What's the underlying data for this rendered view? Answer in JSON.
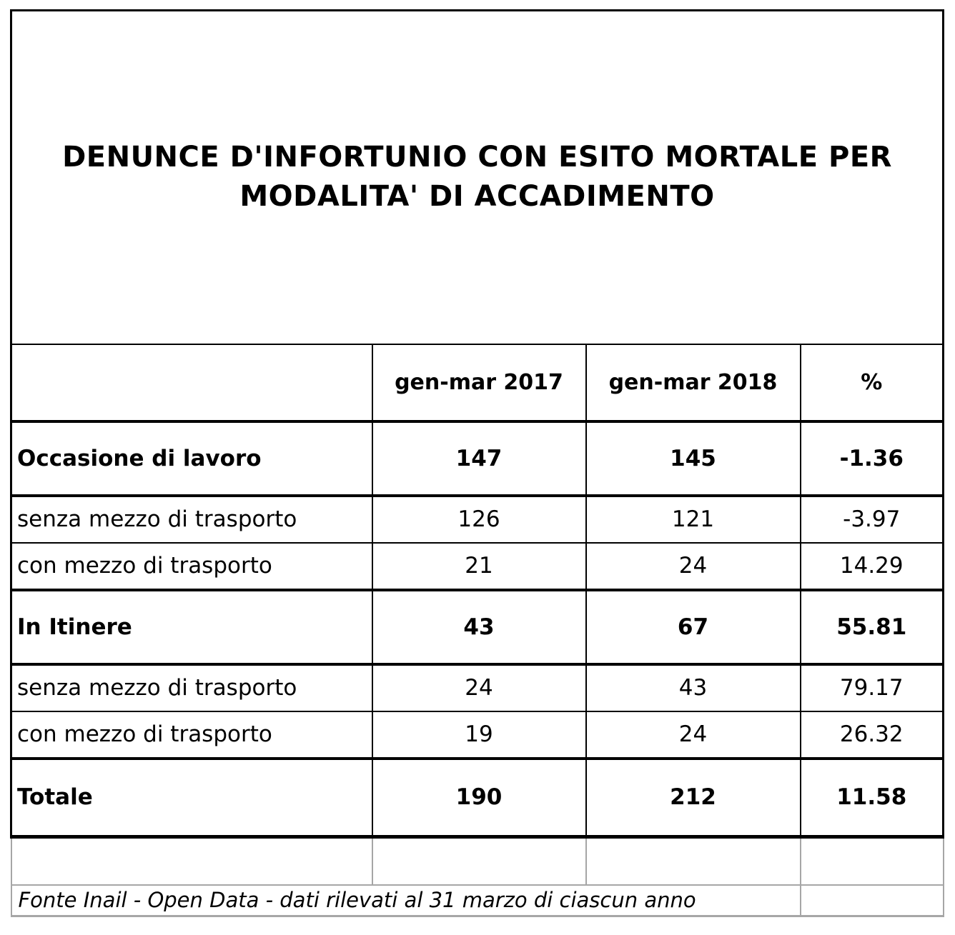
{
  "title": {
    "line1": "DENUNCE D'INFORTUNIO CON ESITO MORTALE PER",
    "line2": "MODALITA' DI ACCADIMENTO",
    "full": "DENUNCE D'INFORTUNIO CON ESITO MORTALE PER MODALITA' DI ACCADIMENTO"
  },
  "table": {
    "columns": [
      "",
      "gen-mar 2017",
      "gen-mar 2018",
      "%"
    ],
    "rows": [
      {
        "label": "Occasione di lavoro",
        "v2017": "147",
        "v2018": "145",
        "pct": "-1.36",
        "emphasis": "bold"
      },
      {
        "label": "senza mezzo di trasporto",
        "v2017": "126",
        "v2018": "121",
        "pct": "-3.97",
        "emphasis": "normal"
      },
      {
        "label": "con mezzo di trasporto",
        "v2017": "21",
        "v2018": "24",
        "pct": "14.29",
        "emphasis": "normal"
      },
      {
        "label": "In Itinere",
        "v2017": "43",
        "v2018": "67",
        "pct": "55.81",
        "emphasis": "bold"
      },
      {
        "label": "senza mezzo di trasporto",
        "v2017": "24",
        "v2018": "43",
        "pct": "79.17",
        "emphasis": "normal"
      },
      {
        "label": "con mezzo di trasporto",
        "v2017": "19",
        "v2018": "24",
        "pct": "26.32",
        "emphasis": "normal"
      },
      {
        "label": "Totale",
        "v2017": "190",
        "v2018": "212",
        "pct": "11.58",
        "emphasis": "bold"
      }
    ]
  },
  "footer": {
    "source": "Fonte Inail - Open Data - dati rilevati al 31 marzo di ciascun anno"
  },
  "colors": {
    "text": "#000000",
    "background": "#ffffff",
    "border_black": "#000000",
    "border_gray": "#a6a6a6"
  }
}
